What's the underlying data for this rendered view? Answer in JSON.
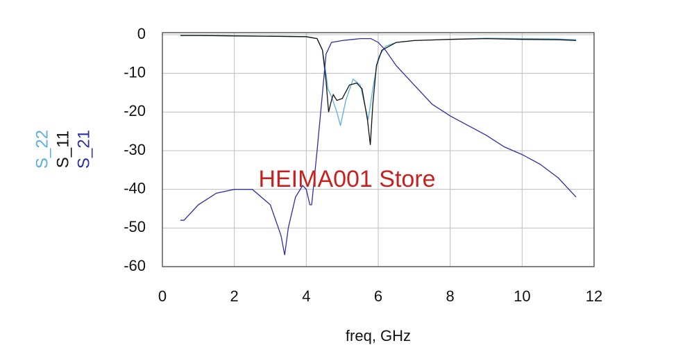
{
  "chart_data": {
    "type": "line",
    "x_label": "freq, GHz",
    "annotation": "HEIMA001 Store",
    "xlim": [
      0,
      12
    ],
    "xticks": [
      0,
      2,
      4,
      6,
      8,
      10,
      12
    ],
    "ylim": [
      -60,
      0
    ],
    "yticks": [
      0,
      -10,
      -20,
      -30,
      -40,
      -50,
      -60
    ],
    "grid": true,
    "series": [
      {
        "name": "S_22",
        "color": "#5aaee0",
        "x": [
          0.5,
          1,
          2,
          3,
          4,
          4.3,
          4.45,
          4.55,
          4.6,
          4.7,
          4.85,
          4.95,
          5.1,
          5.3,
          5.5,
          5.62,
          5.72,
          5.85,
          6.0,
          6.2,
          6.5,
          7,
          8,
          9,
          10,
          11,
          11.5
        ],
        "values": [
          -0.2,
          -0.2,
          -0.3,
          -0.4,
          -0.5,
          -1,
          -4,
          -10,
          -14,
          -16,
          -20,
          -23.5,
          -17,
          -11.5,
          -13,
          -18,
          -22,
          -14,
          -6,
          -3,
          -2,
          -1.5,
          -1.2,
          -0.9,
          -1,
          -1.1,
          -1.3
        ]
      },
      {
        "name": "S_11",
        "color": "#111111",
        "x": [
          0.5,
          1,
          2,
          3,
          4,
          4.3,
          4.45,
          4.55,
          4.62,
          4.7,
          4.75,
          4.85,
          5.0,
          5.2,
          5.4,
          5.55,
          5.7,
          5.78,
          5.85,
          5.95,
          6.1,
          6.5,
          7,
          8,
          9,
          10,
          11,
          11.5
        ],
        "values": [
          -0.2,
          -0.2,
          -0.3,
          -0.4,
          -0.5,
          -1,
          -4,
          -12,
          -20,
          -17,
          -15.5,
          -17,
          -16.5,
          -13,
          -12.5,
          -14,
          -22,
          -28.5,
          -18,
          -8,
          -4,
          -2,
          -1.5,
          -1.2,
          -1,
          -1.2,
          -1.3,
          -1.5
        ]
      },
      {
        "name": "S_21",
        "color": "#2b2fa0",
        "x": [
          0.5,
          0.6,
          1.0,
          1.5,
          2.0,
          2.5,
          3.0,
          3.3,
          3.4,
          3.5,
          3.7,
          3.9,
          4.0,
          4.1,
          4.15,
          4.3,
          4.45,
          4.55,
          4.7,
          5.0,
          5.5,
          5.8,
          6.0,
          6.2,
          6.5,
          7.0,
          7.5,
          8.0,
          8.5,
          9.0,
          9.5,
          10.0,
          10.5,
          11.0,
          11.5
        ],
        "values": [
          -48,
          -48,
          -44,
          -41,
          -40,
          -40,
          -44,
          -52,
          -57,
          -50,
          -42,
          -39,
          -40,
          -44,
          -44,
          -30,
          -15,
          -5,
          -2,
          -1.5,
          -1,
          -1,
          -2,
          -4,
          -8,
          -13,
          -18,
          -21,
          -23.5,
          -26,
          -29,
          -31,
          -33.5,
          -37,
          -42
        ]
      }
    ]
  }
}
